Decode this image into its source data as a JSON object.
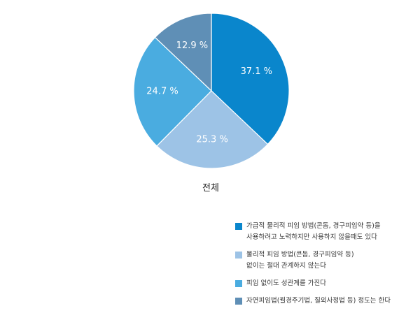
{
  "chart_data": {
    "type": "pie",
    "caption": "전체",
    "series": [
      {
        "value": 37.1,
        "label": "37.1 %",
        "color": "#0a86cc",
        "legend_lines": [
          "가급적 물리적 피임 방법(콘돔, 경구피임약 등)을",
          "사용하려고 노력하지만 사용하지 않을때도 있다"
        ]
      },
      {
        "value": 25.3,
        "label": "25.3 %",
        "color": "#9dc3e6",
        "legend_lines": [
          "물리적 피임 방법(콘돔, 경구피임약 등)",
          "없이는 절대 관계하지 않는다"
        ]
      },
      {
        "value": 24.7,
        "label": "24.7 %",
        "color": "#4aace0",
        "legend_lines": [
          "피임 없이도 성관계를 가진다"
        ]
      },
      {
        "value": 12.9,
        "label": "12.9 %",
        "color": "#5f8fb6",
        "legend_lines": [
          "자연피임법(월경주기법, 질외사정법 등) 정도는 한다"
        ]
      }
    ]
  }
}
